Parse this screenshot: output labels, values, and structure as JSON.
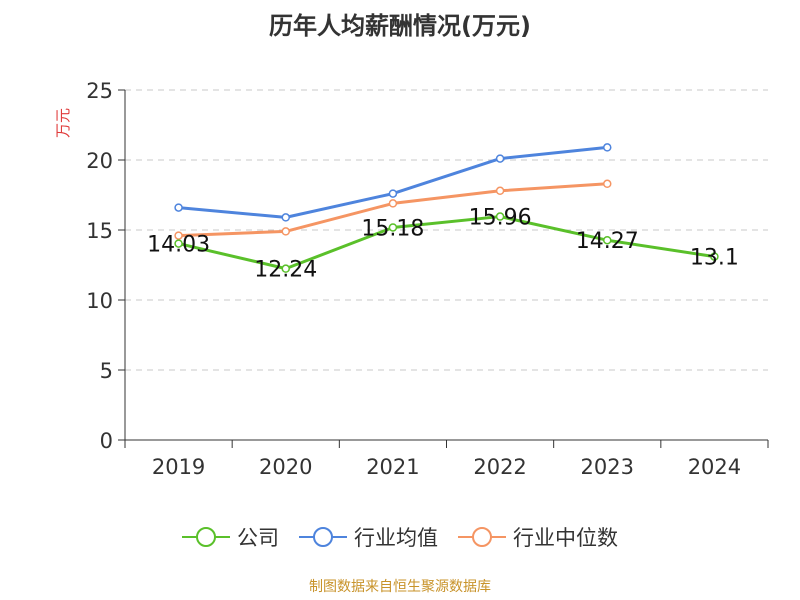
{
  "chart_data": {
    "type": "line",
    "title": "历年人均薪酬情况(万元)",
    "ylabel": "万元",
    "ylim": [
      0,
      25
    ],
    "yticks": [
      0,
      5,
      10,
      15,
      20,
      25
    ],
    "categories": [
      "2019",
      "2020",
      "2021",
      "2022",
      "2023",
      "2024"
    ],
    "grid": true,
    "legend_position": "bottom",
    "series": [
      {
        "name": "公司",
        "color": "#5ac02a",
        "values": [
          14.03,
          12.24,
          15.18,
          15.96,
          14.27,
          13.1
        ],
        "labels": [
          "14.03",
          "12.24",
          "15.18",
          "15.96",
          "14.27",
          "13.1"
        ]
      },
      {
        "name": "行业均值",
        "color": "#4e84dd",
        "values": [
          16.6,
          15.9,
          17.6,
          20.1,
          20.9,
          null
        ]
      },
      {
        "name": "行业中位数",
        "color": "#f59563",
        "values": [
          14.6,
          14.9,
          16.9,
          17.8,
          18.3,
          null
        ]
      }
    ],
    "source": "制图数据来自恒生聚源数据库"
  }
}
